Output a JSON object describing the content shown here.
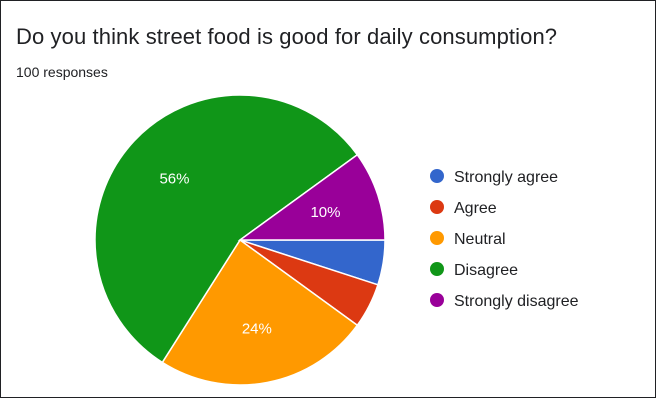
{
  "header": {
    "title": "Do you think street food is good for daily consumption?",
    "responses": "100 responses"
  },
  "chart_data": {
    "type": "pie",
    "categories": [
      "Strongly agree",
      "Agree",
      "Neutral",
      "Disagree",
      "Strongly disagree"
    ],
    "values": [
      5,
      5,
      24,
      56,
      10
    ],
    "data_labels": [
      "",
      "",
      "24%",
      "56%",
      "10%"
    ],
    "colors": [
      "#3366cc",
      "#dc3912",
      "#ff9900",
      "#109618",
      "#990099"
    ],
    "legend_position": "right"
  }
}
